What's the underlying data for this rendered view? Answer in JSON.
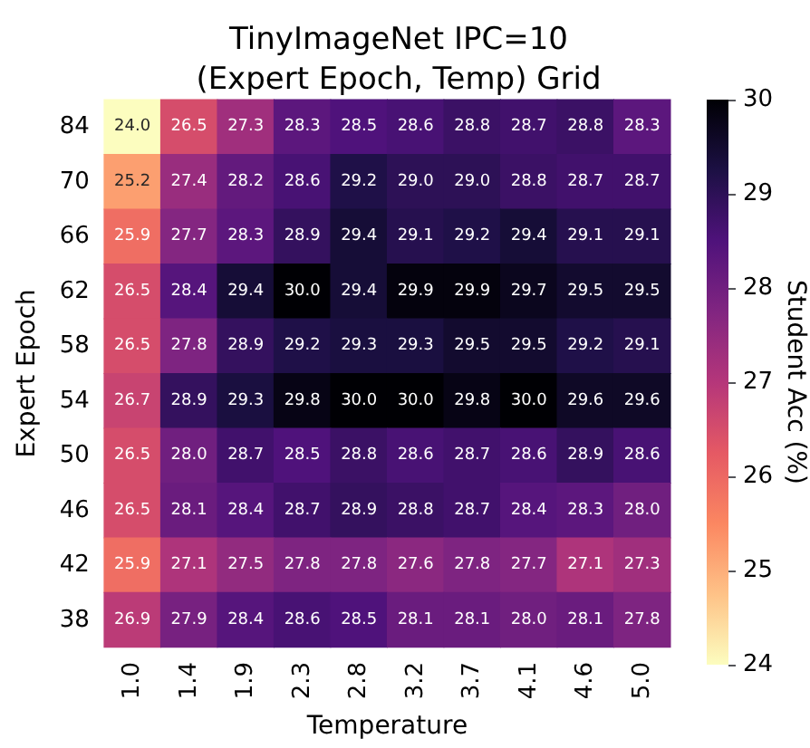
{
  "chart_data": {
    "type": "heatmap",
    "title": "TinyImageNet IPC=10\n(Expert Epoch, Temp) Grid",
    "xlabel": "Temperature",
    "ylabel": "Expert Epoch",
    "clabel": "Student Acc (%)",
    "categories": [
      "1.0",
      "1.4",
      "1.9",
      "2.3",
      "2.8",
      "3.2",
      "3.7",
      "4.1",
      "4.6",
      "5.0"
    ],
    "y_categories": [
      "84",
      "70",
      "66",
      "62",
      "58",
      "54",
      "50",
      "46",
      "42",
      "38"
    ],
    "cells": [
      [
        24.0,
        26.5,
        27.3,
        28.3,
        28.5,
        28.6,
        28.8,
        28.7,
        28.8,
        28.3
      ],
      [
        25.2,
        27.4,
        28.2,
        28.6,
        29.2,
        29.0,
        29.0,
        28.8,
        28.7,
        28.7
      ],
      [
        25.9,
        27.7,
        28.3,
        28.9,
        29.4,
        29.1,
        29.2,
        29.4,
        29.1,
        29.1
      ],
      [
        26.5,
        28.4,
        29.4,
        30.0,
        29.4,
        29.9,
        29.9,
        29.7,
        29.5,
        29.5
      ],
      [
        26.5,
        27.8,
        28.9,
        29.2,
        29.3,
        29.3,
        29.5,
        29.5,
        29.2,
        29.1
      ],
      [
        26.7,
        28.9,
        29.3,
        29.8,
        30.0,
        30.0,
        29.8,
        30.0,
        29.6,
        29.6
      ],
      [
        26.5,
        28.0,
        28.7,
        28.5,
        28.8,
        28.6,
        28.7,
        28.6,
        28.9,
        28.6
      ],
      [
        26.5,
        28.1,
        28.4,
        28.7,
        28.9,
        28.8,
        28.7,
        28.4,
        28.3,
        28.0
      ],
      [
        25.9,
        27.1,
        27.5,
        27.8,
        27.8,
        27.6,
        27.8,
        27.7,
        27.1,
        27.3
      ],
      [
        26.9,
        27.9,
        28.4,
        28.6,
        28.5,
        28.1,
        28.1,
        28.0,
        28.1,
        27.8
      ]
    ],
    "cell_labels": [
      [
        "24.0",
        "26.5",
        "27.3",
        "28.3",
        "28.5",
        "28.6",
        "28.8",
        "28.7",
        "28.8",
        "28.3"
      ],
      [
        "25.2",
        "27.4",
        "28.2",
        "28.6",
        "29.2",
        "29.0",
        "29.0",
        "28.8",
        "28.7",
        "28.7"
      ],
      [
        "25.9",
        "27.7",
        "28.3",
        "28.9",
        "29.4",
        "29.1",
        "29.2",
        "29.4",
        "29.1",
        "29.1"
      ],
      [
        "26.5",
        "28.4",
        "29.4",
        "30.0",
        "29.4",
        "29.9",
        "29.9",
        "29.7",
        "29.5",
        "29.5"
      ],
      [
        "26.5",
        "27.8",
        "28.9",
        "29.2",
        "29.3",
        "29.3",
        "29.5",
        "29.5",
        "29.2",
        "29.1"
      ],
      [
        "26.7",
        "28.9",
        "29.3",
        "29.8",
        "30.0",
        "30.0",
        "29.8",
        "30.0",
        "29.6",
        "29.6"
      ],
      [
        "26.5",
        "28.0",
        "28.7",
        "28.5",
        "28.8",
        "28.6",
        "28.7",
        "28.6",
        "28.9",
        "28.6"
      ],
      [
        "26.5",
        "28.1",
        "28.4",
        "28.7",
        "28.9",
        "28.8",
        "28.7",
        "28.4",
        "28.3",
        "28.0"
      ],
      [
        "25.9",
        "27.1",
        "27.5",
        "27.8",
        "27.8",
        "27.6",
        "27.8",
        "27.7",
        "27.1",
        "27.3"
      ],
      [
        "26.9",
        "27.9",
        "28.4",
        "28.6",
        "28.5",
        "28.1",
        "28.1",
        "28.0",
        "28.1",
        "27.8"
      ]
    ],
    "clim": [
      24,
      30
    ],
    "cticks": [
      24,
      25,
      26,
      27,
      28,
      29,
      30
    ],
    "data_labels": true
  }
}
